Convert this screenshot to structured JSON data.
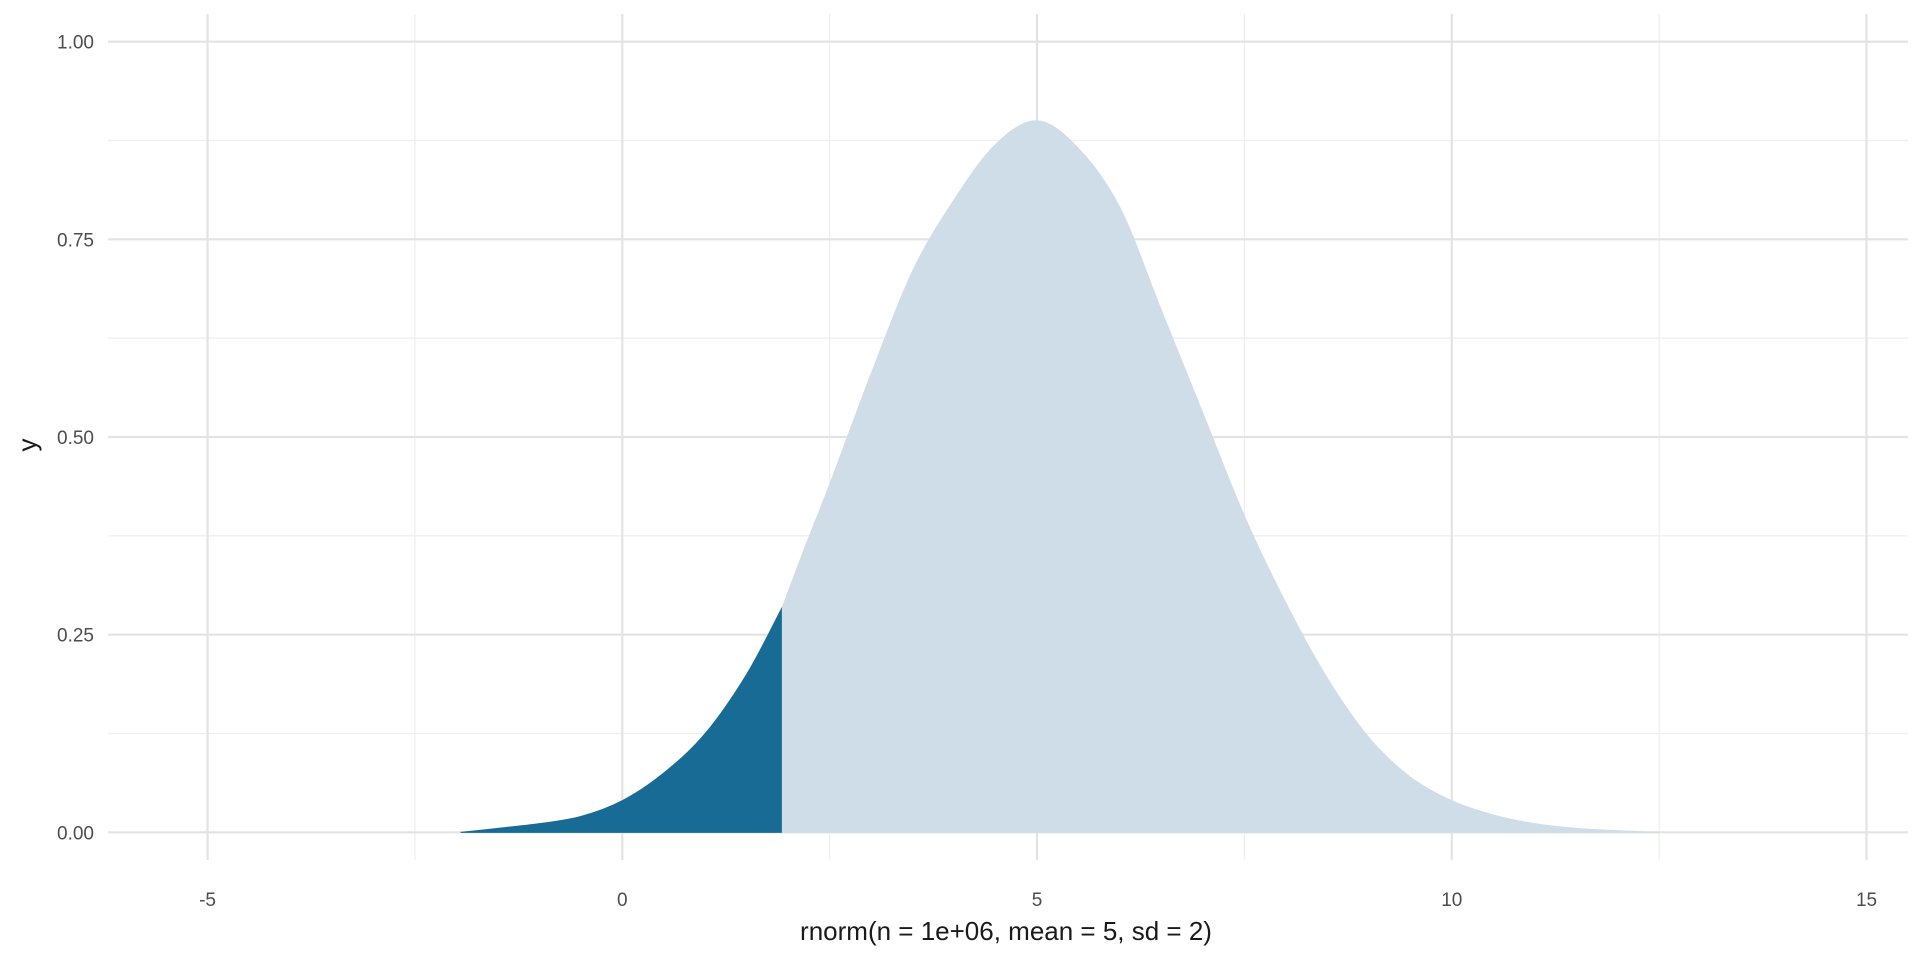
{
  "chart_data": {
    "type": "area",
    "title": "",
    "xlabel": "rnorm(n = 1e+06, mean = 5, sd = 2)",
    "ylabel": "y",
    "xlim": [
      -6.2,
      15.5
    ],
    "ylim": [
      -0.035,
      1.035
    ],
    "x_ticks": [
      -5,
      0,
      5,
      10,
      15
    ],
    "x_tick_labels": [
      "-5",
      "0",
      "5",
      "10",
      "15"
    ],
    "x_minor_ticks": [
      -2.5,
      2.5,
      7.5,
      12.5
    ],
    "y_ticks": [
      0,
      0.25,
      0.5,
      0.75,
      1.0
    ],
    "y_tick_labels": [
      "0.00",
      "0.25",
      "0.50",
      "0.75",
      "1.00"
    ],
    "y_minor_ticks": [
      0.125,
      0.375,
      0.625,
      0.875
    ],
    "grid": true,
    "legend": "none",
    "colors": {
      "highlighted": "#176b94",
      "rest": "#cfdde8",
      "grid_major": "#e3e3e3",
      "grid_minor": "#efefef"
    },
    "series": [
      {
        "region": "x <= 1.93",
        "color": "#176b94",
        "x": [
          -1.95,
          -1.5,
          -1.0,
          -0.5,
          0.0,
          0.5,
          1.0,
          1.5,
          1.93
        ],
        "y": [
          0.0,
          0.005,
          0.011,
          0.02,
          0.04,
          0.075,
          0.125,
          0.2,
          0.285
        ]
      },
      {
        "region": "x >= 1.93",
        "color": "#cfdde8",
        "x": [
          1.93,
          2.2,
          2.5,
          3.0,
          3.5,
          4.0,
          4.5,
          5.0,
          5.5,
          6.0,
          6.5,
          7.0,
          7.5,
          8.0,
          8.5,
          9.0,
          9.5,
          10.0,
          10.5,
          11.0,
          11.5,
          12.0,
          12.5
        ],
        "y": [
          0.285,
          0.36,
          0.44,
          0.58,
          0.71,
          0.8,
          0.87,
          0.9,
          0.865,
          0.79,
          0.66,
          0.53,
          0.4,
          0.29,
          0.195,
          0.12,
          0.07,
          0.04,
          0.022,
          0.011,
          0.005,
          0.002,
          0.0
        ]
      }
    ]
  }
}
